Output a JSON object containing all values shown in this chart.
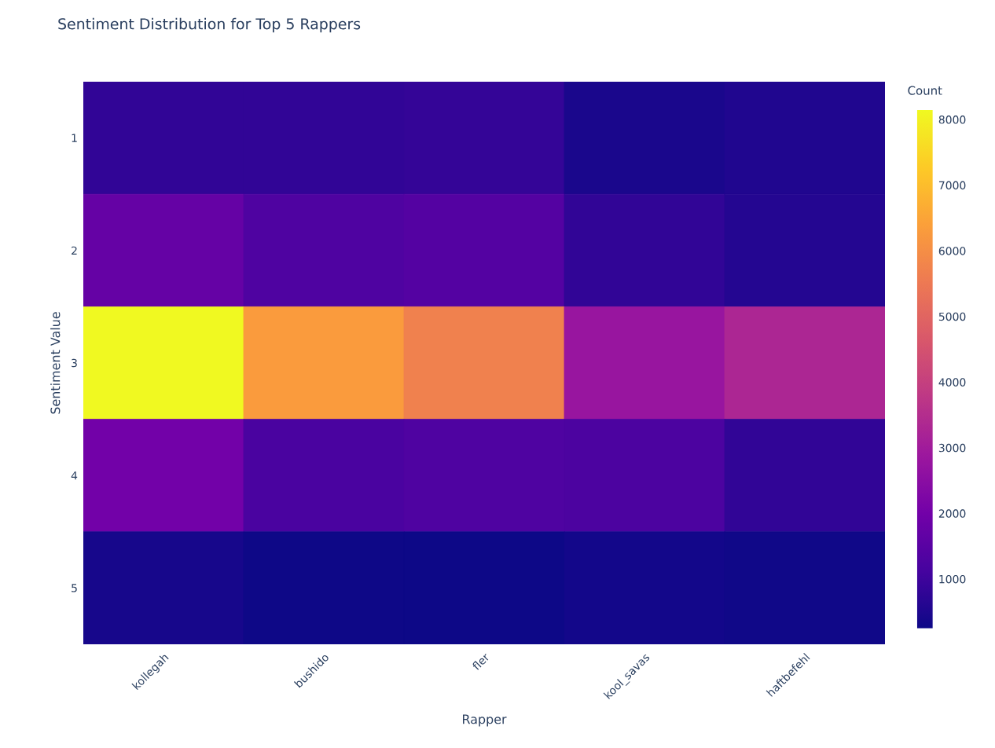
{
  "chart_data": {
    "type": "heatmap",
    "title": "Sentiment Distribution for Top 5 Rappers",
    "xlabel": "Rapper",
    "ylabel": "Sentiment Value",
    "clabel": "Count",
    "categories": [
      "kollegah",
      "bushido",
      "fler",
      "kool_savas",
      "haftbefehl"
    ],
    "y_categories": [
      "1",
      "2",
      "3",
      "4",
      "5"
    ],
    "cells": [
      [
        800,
        800,
        850,
        450,
        550
      ],
      [
        1750,
        1300,
        1400,
        800,
        600
      ],
      [
        8150,
        6300,
        5700,
        2800,
        3300
      ],
      [
        2000,
        1200,
        1300,
        1250,
        800
      ],
      [
        400,
        260,
        250,
        350,
        300
      ]
    ],
    "clim": [
      250,
      8150
    ],
    "cticks": [
      1000,
      2000,
      3000,
      4000,
      5000,
      6000,
      7000,
      8000
    ]
  }
}
